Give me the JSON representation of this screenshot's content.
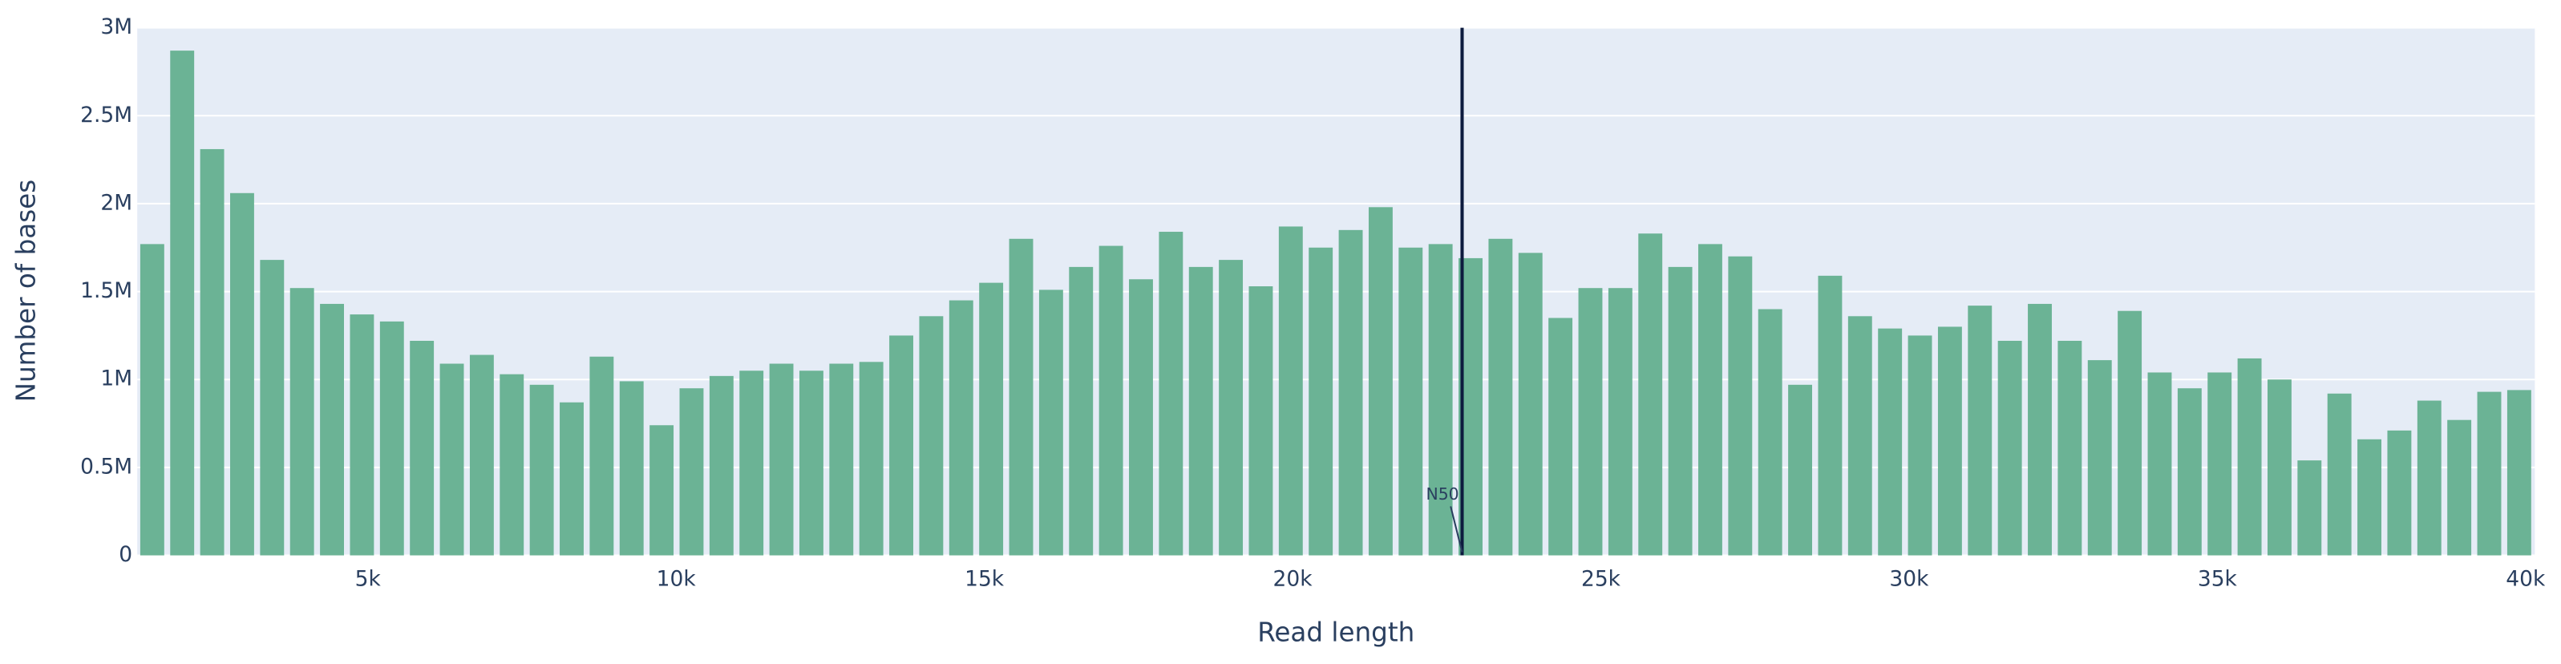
{
  "chart_data": {
    "type": "histogram",
    "xlabel": "Read length",
    "ylabel": "Number of bases",
    "color": "#6bb395",
    "bins": [
      1260,
      1746,
      2232,
      2718,
      3204,
      3690,
      4176,
      4662,
      5148,
      5634,
      6120,
      6606,
      7092,
      7578,
      8064,
      8550,
      9036,
      9522,
      10008,
      10494,
      10980,
      11466,
      11952,
      12438,
      12924,
      13410,
      13896,
      14382,
      14868,
      15354,
      15840,
      16326,
      16812,
      17298,
      17784,
      18270,
      18756,
      19242,
      19728,
      20214,
      20700,
      21186,
      21672,
      22158,
      22644,
      23130,
      23616,
      24102,
      24588,
      25074,
      25560,
      26046,
      26532,
      27018,
      27504,
      27990,
      28476,
      28962,
      29448,
      29934,
      30420,
      30906,
      31392,
      31878,
      32364,
      32850,
      33336,
      33822,
      34308,
      34794,
      35280,
      35766,
      36252,
      36738,
      37224,
      37710,
      38196,
      38682,
      39168,
      39654,
      40140
    ],
    "values": [
      1770000,
      2870000,
      2310000,
      2060000,
      1680000,
      1520000,
      1430000,
      1370000,
      1330000,
      1220000,
      1090000,
      1140000,
      1030000,
      970000,
      870000,
      1130000,
      990000,
      740000,
      950000,
      1020000,
      1050000,
      1090000,
      1050000,
      1090000,
      1100000,
      1250000,
      1360000,
      1450000,
      1550000,
      1800000,
      1510000,
      1640000,
      1760000,
      1570000,
      1840000,
      1640000,
      1680000,
      1530000,
      1870000,
      1750000,
      1850000,
      1980000,
      1750000,
      1770000,
      1690000,
      1800000,
      1720000,
      1350000,
      1520000,
      1520000,
      1830000,
      1640000,
      1770000,
      1700000,
      1400000,
      970000,
      1590000,
      1360000,
      1290000,
      1250000,
      1300000,
      1420000,
      1220000,
      1430000,
      1220000,
      1110000,
      1390000,
      1040000,
      950000,
      1040000,
      1120000,
      1000000,
      540000,
      920000,
      660000,
      710000,
      880000,
      770000,
      930000,
      940000
    ],
    "xlim": [
      1260,
      40150
    ],
    "ylim": [
      0,
      3000000
    ],
    "xticks": [
      {
        "value": 5000,
        "label": "5k"
      },
      {
        "value": 10000,
        "label": "10k"
      },
      {
        "value": 15000,
        "label": "15k"
      },
      {
        "value": 20000,
        "label": "20k"
      },
      {
        "value": 25000,
        "label": "25k"
      },
      {
        "value": 30000,
        "label": "30k"
      },
      {
        "value": 35000,
        "label": "35k"
      },
      {
        "value": 40000,
        "label": "40k"
      }
    ],
    "yticks": [
      0,
      {
        "value": 500000,
        "label": "0.5M"
      },
      {
        "value": 1000000,
        "label": "1M"
      },
      {
        "value": 1500000,
        "label": "1.5M"
      },
      {
        "value": 2000000,
        "label": "2M"
      },
      {
        "value": 2500000,
        "label": "2.5M"
      },
      {
        "value": 3000000,
        "label": "3M"
      }
    ],
    "grid": true,
    "n50": 22750,
    "n50_label": "N50"
  }
}
